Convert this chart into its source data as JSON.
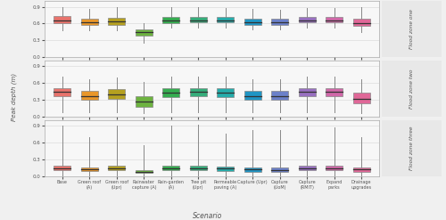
{
  "categories": [
    "Base",
    "Green roof\n(A)",
    "Green roof\n(Upr)",
    "Rainwater\ncapture (A)",
    "Rain-garden\n(A)",
    "Tree pit\n(Upr)",
    "Permeable\npaving (A)",
    "Capture (Upr)",
    "Capture\n(UoM)",
    "Capture\n(RMIT)",
    "Expand\nparks",
    "Drainage\nupgrades"
  ],
  "colors": [
    "#E8736C",
    "#E8962A",
    "#B5A020",
    "#6DB340",
    "#35AD50",
    "#35AD7A",
    "#25ACAA",
    "#2095C4",
    "#6B80C9",
    "#9870C0",
    "#D068A8",
    "#E06898"
  ],
  "zone1": {
    "whisker_low": [
      0.48,
      0.48,
      0.48,
      0.26,
      0.52,
      0.52,
      0.52,
      0.5,
      0.5,
      0.52,
      0.52,
      0.44
    ],
    "q1": [
      0.6,
      0.58,
      0.58,
      0.38,
      0.6,
      0.62,
      0.62,
      0.58,
      0.58,
      0.62,
      0.62,
      0.56
    ],
    "median": [
      0.66,
      0.63,
      0.64,
      0.44,
      0.65,
      0.66,
      0.66,
      0.63,
      0.63,
      0.66,
      0.66,
      0.61
    ],
    "q3": [
      0.73,
      0.69,
      0.7,
      0.5,
      0.71,
      0.72,
      0.72,
      0.69,
      0.68,
      0.72,
      0.72,
      0.68
    ],
    "whisker_high": [
      0.9,
      0.86,
      0.9,
      0.6,
      0.89,
      0.89,
      0.88,
      0.86,
      0.85,
      0.88,
      0.88,
      0.9
    ]
  },
  "zone2": {
    "whisker_low": [
      0.08,
      0.08,
      0.08,
      0.06,
      0.08,
      0.08,
      0.08,
      0.08,
      0.08,
      0.08,
      0.08,
      0.06
    ],
    "q1": [
      0.36,
      0.3,
      0.32,
      0.18,
      0.35,
      0.36,
      0.35,
      0.3,
      0.3,
      0.36,
      0.36,
      0.24
    ],
    "median": [
      0.44,
      0.37,
      0.4,
      0.27,
      0.43,
      0.44,
      0.43,
      0.37,
      0.37,
      0.44,
      0.44,
      0.32
    ],
    "q3": [
      0.51,
      0.46,
      0.49,
      0.36,
      0.51,
      0.51,
      0.51,
      0.46,
      0.46,
      0.51,
      0.51,
      0.43
    ],
    "whisker_high": [
      0.72,
      0.66,
      0.7,
      0.62,
      0.72,
      0.72,
      0.72,
      0.66,
      0.66,
      0.72,
      0.72,
      0.66
    ]
  },
  "zone3": {
    "whisker_low": [
      0.0,
      0.0,
      0.0,
      0.0,
      0.0,
      0.0,
      0.0,
      0.0,
      0.0,
      0.0,
      0.0,
      0.0
    ],
    "q1": [
      0.1,
      0.09,
      0.1,
      0.05,
      0.1,
      0.1,
      0.09,
      0.08,
      0.08,
      0.1,
      0.1,
      0.08
    ],
    "median": [
      0.14,
      0.12,
      0.14,
      0.08,
      0.14,
      0.14,
      0.13,
      0.12,
      0.11,
      0.14,
      0.14,
      0.12
    ],
    "q3": [
      0.18,
      0.16,
      0.18,
      0.11,
      0.18,
      0.18,
      0.17,
      0.15,
      0.15,
      0.18,
      0.18,
      0.15
    ],
    "whisker_high": [
      0.9,
      0.7,
      0.9,
      0.55,
      0.9,
      0.92,
      0.76,
      0.82,
      0.82,
      0.9,
      0.86,
      0.7
    ]
  },
  "ylabel": "Peak depth (m)",
  "xlabel": "Scenario",
  "zone_labels": [
    "Flood zone one",
    "Flood zone two",
    "Flood zone three"
  ],
  "ylim": [
    0.0,
    1.0
  ],
  "yticks": [
    0.0,
    0.3,
    0.6,
    0.9
  ],
  "bg_color": "#f0f0f0",
  "panel_bg": "#f7f7f7"
}
